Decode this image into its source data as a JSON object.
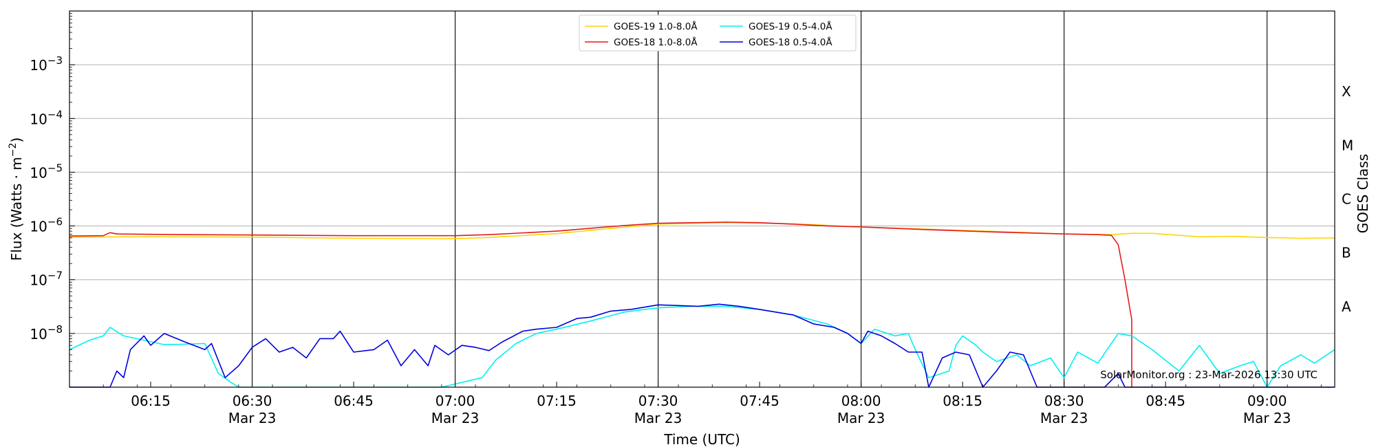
{
  "chart_data": {
    "type": "line",
    "xlabel": "Time (UTC)",
    "ylabel": "Flux (Watts · m",
    "ylabel_sup": "−2",
    "ylabel_close": ")",
    "right_label": "GOES Class",
    "yscale": "log",
    "xlim": [
      "06:03",
      "09:10"
    ],
    "ylim": [
      1e-09,
      0.01
    ],
    "grid": true,
    "legend_location": "top-center",
    "annotation": "SolarMonitor.org : 23-Mar-2026 13:30 UTC",
    "vertical_lines": [
      "06:30",
      "07:00",
      "07:30",
      "08:00",
      "08:30",
      "09:00"
    ],
    "xticks": [
      {
        "t": "06:15",
        "label": "06:15",
        "sub": ""
      },
      {
        "t": "06:30",
        "label": "06:30",
        "sub": "Mar 23"
      },
      {
        "t": "06:45",
        "label": "06:45",
        "sub": ""
      },
      {
        "t": "07:00",
        "label": "07:00",
        "sub": "Mar 23"
      },
      {
        "t": "07:15",
        "label": "07:15",
        "sub": ""
      },
      {
        "t": "07:30",
        "label": "07:30",
        "sub": "Mar 23"
      },
      {
        "t": "07:45",
        "label": "07:45",
        "sub": ""
      },
      {
        "t": "08:00",
        "label": "08:00",
        "sub": "Mar 23"
      },
      {
        "t": "08:15",
        "label": "08:15",
        "sub": ""
      },
      {
        "t": "08:30",
        "label": "08:30",
        "sub": "Mar 23"
      },
      {
        "t": "08:45",
        "label": "08:45",
        "sub": ""
      },
      {
        "t": "09:00",
        "label": "09:00",
        "sub": "Mar 23"
      }
    ],
    "yticks": [
      {
        "value": 1e-08,
        "base": "10",
        "exp": "−8"
      },
      {
        "value": 1e-07,
        "base": "10",
        "exp": "−7"
      },
      {
        "value": 1e-06,
        "base": "10",
        "exp": "−6"
      },
      {
        "value": 1e-05,
        "base": "10",
        "exp": "−5"
      },
      {
        "value": 0.0001,
        "base": "10",
        "exp": "−4"
      },
      {
        "value": 0.001,
        "base": "10",
        "exp": "−3"
      }
    ],
    "goes_classes": [
      {
        "label": "A",
        "value": 3.16e-08
      },
      {
        "label": "B",
        "value": 3.16e-07
      },
      {
        "label": "C",
        "value": 3.16e-06
      },
      {
        "label": "M",
        "value": 3.16e-05
      },
      {
        "label": "X",
        "value": 0.000316
      }
    ],
    "series": [
      {
        "name": "GOES-19 1.0-8.0Å",
        "color": "#ffd700",
        "points": [
          [
            "06:03",
            6.2e-07
          ],
          [
            "06:15",
            6.3e-07
          ],
          [
            "06:30",
            6.2e-07
          ],
          [
            "06:45",
            5.9e-07
          ],
          [
            "07:00",
            5.8e-07
          ],
          [
            "07:05",
            6.1e-07
          ],
          [
            "07:15",
            7.2e-07
          ],
          [
            "07:25",
            9.5e-07
          ],
          [
            "07:30",
            1.08e-06
          ],
          [
            "07:40",
            1.15e-06
          ],
          [
            "07:50",
            1.1e-06
          ],
          [
            "08:00",
            9.6e-07
          ],
          [
            "08:10",
            8.7e-07
          ],
          [
            "08:20",
            7.9e-07
          ],
          [
            "08:30",
            7.1e-07
          ],
          [
            "08:37",
            6.9e-07
          ],
          [
            "08:40",
            7.3e-07
          ],
          [
            "08:43",
            7.3e-07
          ],
          [
            "08:47",
            6.7e-07
          ],
          [
            "08:50",
            6.3e-07
          ],
          [
            "08:55",
            6.4e-07
          ],
          [
            "09:00",
            6.1e-07
          ],
          [
            "09:05",
            5.9e-07
          ],
          [
            "09:10",
            6e-07
          ]
        ]
      },
      {
        "name": "GOES-18 1.0-8.0Å",
        "color": "#e41a1c",
        "points": [
          [
            "06:03",
            6.5e-07
          ],
          [
            "06:08",
            6.6e-07
          ],
          [
            "06:09",
            7.5e-07
          ],
          [
            "06:10",
            7.1e-07
          ],
          [
            "06:15",
            7e-07
          ],
          [
            "06:20",
            6.9e-07
          ],
          [
            "06:30",
            6.8e-07
          ],
          [
            "06:45",
            6.6e-07
          ],
          [
            "07:00",
            6.6e-07
          ],
          [
            "07:05",
            6.9e-07
          ],
          [
            "07:15",
            8e-07
          ],
          [
            "07:25",
            1.02e-06
          ],
          [
            "07:30",
            1.12e-06
          ],
          [
            "07:35",
            1.15e-06
          ],
          [
            "07:40",
            1.18e-06
          ],
          [
            "07:45",
            1.15e-06
          ],
          [
            "07:50",
            1.08e-06
          ],
          [
            "07:55",
            1e-06
          ],
          [
            "08:00",
            9.6e-07
          ],
          [
            "08:10",
            8.5e-07
          ],
          [
            "08:20",
            7.7e-07
          ],
          [
            "08:30",
            7.1e-07
          ],
          [
            "08:35",
            6.9e-07
          ],
          [
            "08:37",
            6.7e-07
          ],
          [
            "08:38",
            4.5e-07
          ],
          [
            "08:39",
            1e-07
          ],
          [
            "08:40",
            1.8e-08
          ],
          [
            "08:40",
            1e-09
          ]
        ]
      },
      {
        "name": "GOES-19 0.5-4.0Å",
        "color": "#00f0f0",
        "points": [
          [
            "06:03",
            5e-09
          ],
          [
            "06:06",
            7.5e-09
          ],
          [
            "06:08",
            9e-09
          ],
          [
            "06:09",
            1.3e-08
          ],
          [
            "06:11",
            9e-09
          ],
          [
            "06:14",
            7.5e-09
          ],
          [
            "06:17",
            6.2e-09
          ],
          [
            "06:20",
            6.3e-09
          ],
          [
            "06:23",
            6.5e-09
          ],
          [
            "06:25",
            1.8e-09
          ],
          [
            "06:27",
            1.2e-09
          ],
          [
            "06:28",
            9e-10
          ],
          [
            "06:58",
            9e-10
          ],
          [
            "07:04",
            1.5e-09
          ],
          [
            "07:06",
            3.2e-09
          ],
          [
            "07:09",
            6.5e-09
          ],
          [
            "07:12",
            1e-08
          ],
          [
            "07:15",
            1.2e-08
          ],
          [
            "07:20",
            1.7e-08
          ],
          [
            "07:25",
            2.5e-08
          ],
          [
            "07:30",
            3e-08
          ],
          [
            "07:35",
            3.2e-08
          ],
          [
            "07:40",
            3.2e-08
          ],
          [
            "07:45",
            2.8e-08
          ],
          [
            "07:50",
            2.2e-08
          ],
          [
            "07:55",
            1.5e-08
          ],
          [
            "07:58",
            1e-08
          ],
          [
            "08:00",
            6.5e-09
          ],
          [
            "08:02",
            1.2e-08
          ],
          [
            "08:05",
            9e-09
          ],
          [
            "08:07",
            1e-08
          ],
          [
            "08:08",
            5e-09
          ],
          [
            "08:10",
            1.5e-09
          ],
          [
            "08:13",
            2e-09
          ],
          [
            "08:14",
            6e-09
          ],
          [
            "08:15",
            9e-09
          ],
          [
            "08:17",
            6e-09
          ],
          [
            "08:18",
            4.5e-09
          ],
          [
            "08:20",
            3e-09
          ],
          [
            "08:23",
            4e-09
          ],
          [
            "08:25",
            2.5e-09
          ],
          [
            "08:28",
            3.5e-09
          ],
          [
            "08:30",
            1.5e-09
          ],
          [
            "08:32",
            4.5e-09
          ],
          [
            "08:35",
            2.8e-09
          ],
          [
            "08:38",
            1e-08
          ],
          [
            "08:40",
            9e-09
          ],
          [
            "08:43",
            5e-09
          ],
          [
            "08:47",
            2e-09
          ],
          [
            "08:50",
            6e-09
          ],
          [
            "08:53",
            1.8e-09
          ],
          [
            "08:56",
            2.5e-09
          ],
          [
            "08:58",
            3e-09
          ],
          [
            "09:00",
            9e-10
          ],
          [
            "09:02",
            2.5e-09
          ],
          [
            "09:05",
            4e-09
          ],
          [
            "09:07",
            2.8e-09
          ],
          [
            "09:10",
            5e-09
          ]
        ]
      },
      {
        "name": "GOES-18 0.5-4.0Å",
        "color": "#0000dd",
        "points": [
          [
            "06:03",
            1e-09
          ],
          [
            "06:06",
            1e-09
          ],
          [
            "06:09",
            1e-09
          ],
          [
            "06:10",
            2e-09
          ],
          [
            "06:11",
            1.5e-09
          ],
          [
            "06:12",
            5e-09
          ],
          [
            "06:14",
            9e-09
          ],
          [
            "06:15",
            6e-09
          ],
          [
            "06:17",
            1e-08
          ],
          [
            "06:20",
            7e-09
          ],
          [
            "06:23",
            5e-09
          ],
          [
            "06:24",
            6.5e-09
          ],
          [
            "06:26",
            1.5e-09
          ],
          [
            "06:28",
            2.5e-09
          ],
          [
            "06:30",
            5.5e-09
          ],
          [
            "06:32",
            8e-09
          ],
          [
            "06:34",
            4.5e-09
          ],
          [
            "06:36",
            5.5e-09
          ],
          [
            "06:38",
            3.5e-09
          ],
          [
            "06:40",
            8e-09
          ],
          [
            "06:42",
            8e-09
          ],
          [
            "06:43",
            1.1e-08
          ],
          [
            "06:45",
            4.5e-09
          ],
          [
            "06:48",
            5e-09
          ],
          [
            "06:50",
            7.5e-09
          ],
          [
            "06:52",
            2.5e-09
          ],
          [
            "06:54",
            5e-09
          ],
          [
            "06:56",
            2.5e-09
          ],
          [
            "06:57",
            6e-09
          ],
          [
            "06:59",
            4e-09
          ],
          [
            "07:01",
            6e-09
          ],
          [
            "07:03",
            5.5e-09
          ],
          [
            "07:05",
            4.8e-09
          ],
          [
            "07:07",
            7e-09
          ],
          [
            "07:10",
            1.1e-08
          ],
          [
            "07:12",
            1.2e-08
          ],
          [
            "07:15",
            1.3e-08
          ],
          [
            "07:18",
            1.9e-08
          ],
          [
            "07:20",
            2e-08
          ],
          [
            "07:23",
            2.6e-08
          ],
          [
            "07:26",
            2.8e-08
          ],
          [
            "07:30",
            3.4e-08
          ],
          [
            "07:33",
            3.3e-08
          ],
          [
            "07:36",
            3.2e-08
          ],
          [
            "07:39",
            3.5e-08
          ],
          [
            "07:42",
            3.2e-08
          ],
          [
            "07:45",
            2.8e-08
          ],
          [
            "07:50",
            2.2e-08
          ],
          [
            "07:53",
            1.5e-08
          ],
          [
            "07:56",
            1.3e-08
          ],
          [
            "07:58",
            1e-08
          ],
          [
            "08:00",
            6.5e-09
          ],
          [
            "08:01",
            1.1e-08
          ],
          [
            "08:03",
            9e-09
          ],
          [
            "08:05",
            6.5e-09
          ],
          [
            "08:07",
            4.5e-09
          ],
          [
            "08:09",
            4.5e-09
          ],
          [
            "08:10",
            1e-09
          ],
          [
            "08:12",
            3.5e-09
          ],
          [
            "08:14",
            4.5e-09
          ],
          [
            "08:16",
            4e-09
          ],
          [
            "08:18",
            1e-09
          ],
          [
            "08:20",
            2e-09
          ],
          [
            "08:22",
            4.5e-09
          ],
          [
            "08:24",
            4e-09
          ],
          [
            "08:26",
            1e-09
          ],
          [
            "08:36",
            1e-09
          ],
          [
            "08:38",
            1.8e-09
          ],
          [
            "08:39",
            1e-09
          ],
          [
            "09:10",
            1e-09
          ]
        ]
      }
    ]
  }
}
